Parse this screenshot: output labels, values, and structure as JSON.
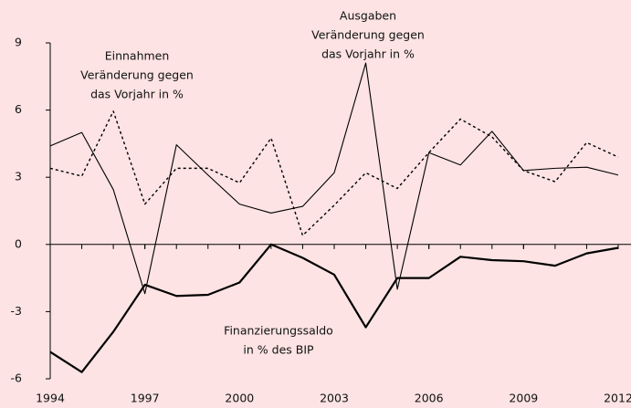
{
  "chart_data": {
    "type": "line",
    "x": [
      1994,
      1995,
      1996,
      1997,
      1998,
      1999,
      2000,
      2001,
      2002,
      2003,
      2004,
      2005,
      2006,
      2007,
      2008,
      2009,
      2010,
      2011,
      2012
    ],
    "xlim": [
      1994,
      2012
    ],
    "xticks": [
      1994,
      1997,
      2000,
      2003,
      2006,
      2009,
      2012
    ],
    "ylim": [
      -6,
      9
    ],
    "yticks": [
      -6,
      -3,
      0,
      3,
      6,
      9
    ],
    "series": [
      {
        "color": "#000000",
        "width": 1.1,
        "dashed": false,
        "values": [
          4.4,
          5.0,
          2.45,
          -2.2,
          4.45,
          3.1,
          1.8,
          1.4,
          1.7,
          3.2,
          8.1,
          -2.0,
          4.1,
          3.55,
          5.05,
          3.3,
          3.4,
          3.45,
          3.1
        ]
      },
      {
        "color": "#000000",
        "width": 1.4,
        "dashed": true,
        "values": [
          3.4,
          3.05,
          5.95,
          1.8,
          3.4,
          3.4,
          2.75,
          4.75,
          0.4,
          1.75,
          3.2,
          2.5,
          4.1,
          5.6,
          4.8,
          3.3,
          2.8,
          4.55,
          3.9
        ]
      },
      {
        "color": "#000000",
        "width": 2.2,
        "dashed": false,
        "values": [
          -4.8,
          -5.7,
          -3.9,
          -1.8,
          -2.3,
          -2.25,
          -1.7,
          0.0,
          -0.6,
          -1.35,
          -3.7,
          -1.5,
          -1.5,
          -0.55,
          -0.7,
          -0.75,
          -0.95,
          -0.4,
          -0.15
        ]
      }
    ],
    "annotations": [
      {
        "lines": [
          "Einnahmen",
          "Veränderung gegen",
          "das Vorjahr in %"
        ]
      },
      {
        "lines": [
          "Ausgaben",
          "Veränderung gegen",
          "das Vorjahr in %"
        ]
      },
      {
        "lines": [
          "Finanzierungssaldo",
          "in % des BIP"
        ]
      }
    ]
  }
}
